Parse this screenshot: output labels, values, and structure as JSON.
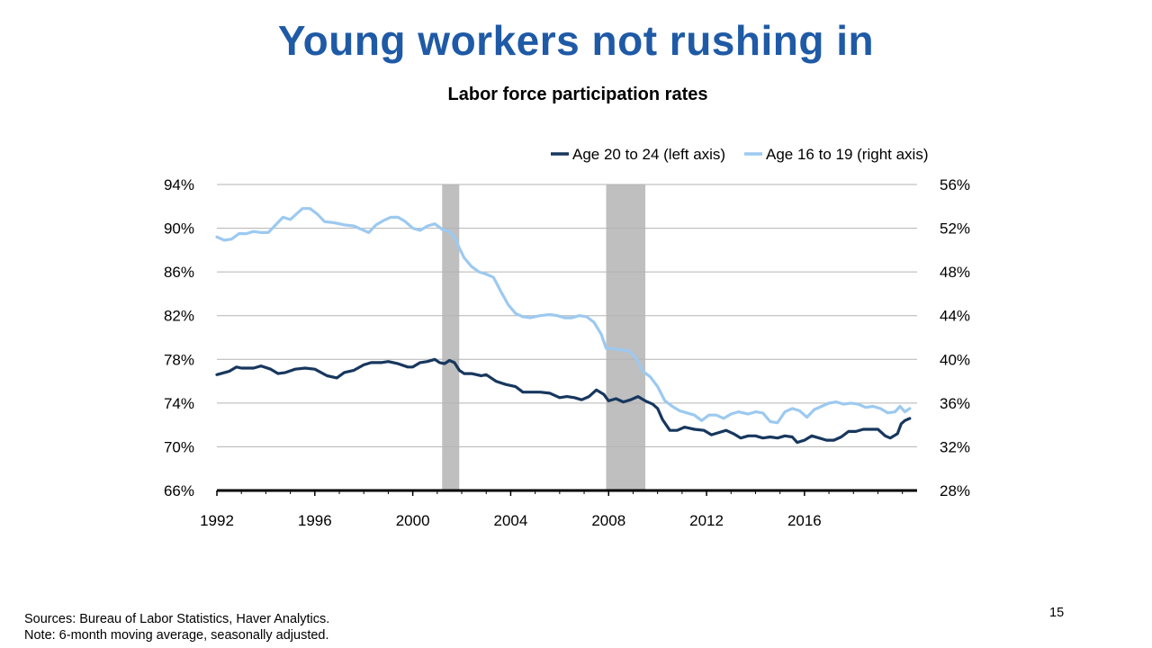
{
  "slide": {
    "title": "Young workers not rushing in",
    "page_number": "15",
    "sources": "Sources: Bureau of Labor Statistics, Haver Analytics.",
    "note": "Note: 6-month moving average, seasonally adjusted."
  },
  "chart_data": {
    "type": "line",
    "title": "Labor force participation rates",
    "x_range": [
      1992,
      2019.9
    ],
    "x_ticks": [
      1992,
      1996,
      2000,
      2004,
      2008,
      2012,
      2016
    ],
    "x_tick_labels": [
      "1992",
      "1996",
      "2000",
      "2004",
      "2008",
      "2012",
      "2016"
    ],
    "left_axis": {
      "range": [
        66,
        94
      ],
      "ticks": [
        66,
        70,
        74,
        78,
        82,
        86,
        90,
        94
      ],
      "tick_labels": [
        "66%",
        "70%",
        "74%",
        "78%",
        "82%",
        "86%",
        "90%",
        "94%"
      ]
    },
    "right_axis": {
      "range": [
        28,
        56
      ],
      "ticks": [
        28,
        32,
        36,
        40,
        44,
        48,
        52,
        56
      ],
      "tick_labels": [
        "28%",
        "32%",
        "36%",
        "40%",
        "44%",
        "48%",
        "52%",
        "56%"
      ]
    },
    "grid": true,
    "legend_position": "top-right",
    "recessions": [
      {
        "start": 2001.2,
        "end": 2001.9
      },
      {
        "start": 2007.9,
        "end": 2009.5
      }
    ],
    "colors": {
      "series_20_24": "#17375e",
      "series_16_19": "#9cc9f0",
      "recession": "#bfbfbf",
      "grid": "#b3b3b3",
      "axis": "#000000"
    },
    "series": [
      {
        "name": "Age 20 to 24 (left axis)",
        "axis": "left",
        "points": [
          [
            1992.0,
            76.6
          ],
          [
            1992.5,
            76.9
          ],
          [
            1992.8,
            77.3
          ],
          [
            1993.0,
            77.2
          ],
          [
            1993.5,
            77.2
          ],
          [
            1993.8,
            77.4
          ],
          [
            1994.2,
            77.1
          ],
          [
            1994.5,
            76.7
          ],
          [
            1994.8,
            76.8
          ],
          [
            1995.2,
            77.1
          ],
          [
            1995.6,
            77.2
          ],
          [
            1996.0,
            77.1
          ],
          [
            1996.5,
            76.5
          ],
          [
            1996.9,
            76.3
          ],
          [
            1997.2,
            76.8
          ],
          [
            1997.6,
            77.0
          ],
          [
            1998.0,
            77.5
          ],
          [
            1998.3,
            77.7
          ],
          [
            1998.7,
            77.7
          ],
          [
            1999.0,
            77.8
          ],
          [
            1999.4,
            77.6
          ],
          [
            1999.8,
            77.3
          ],
          [
            2000.0,
            77.3
          ],
          [
            2000.3,
            77.7
          ],
          [
            2000.6,
            77.8
          ],
          [
            2000.9,
            78.0
          ],
          [
            2001.1,
            77.7
          ],
          [
            2001.3,
            77.6
          ],
          [
            2001.5,
            77.9
          ],
          [
            2001.7,
            77.7
          ],
          [
            2001.9,
            77.0
          ],
          [
            2002.1,
            76.7
          ],
          [
            2002.4,
            76.7
          ],
          [
            2002.8,
            76.5
          ],
          [
            2003.0,
            76.6
          ],
          [
            2003.4,
            76.0
          ],
          [
            2003.8,
            75.7
          ],
          [
            2004.2,
            75.5
          ],
          [
            2004.5,
            75.0
          ],
          [
            2004.8,
            75.0
          ],
          [
            2005.2,
            75.0
          ],
          [
            2005.6,
            74.9
          ],
          [
            2006.0,
            74.5
          ],
          [
            2006.3,
            74.6
          ],
          [
            2006.6,
            74.5
          ],
          [
            2006.9,
            74.3
          ],
          [
            2007.2,
            74.6
          ],
          [
            2007.5,
            75.2
          ],
          [
            2007.8,
            74.8
          ],
          [
            2008.0,
            74.2
          ],
          [
            2008.3,
            74.4
          ],
          [
            2008.6,
            74.1
          ],
          [
            2008.9,
            74.3
          ],
          [
            2009.2,
            74.6
          ],
          [
            2009.5,
            74.2
          ],
          [
            2009.8,
            73.9
          ],
          [
            2010.0,
            73.5
          ],
          [
            2010.2,
            72.5
          ],
          [
            2010.5,
            71.5
          ],
          [
            2010.8,
            71.5
          ],
          [
            2011.1,
            71.8
          ],
          [
            2011.5,
            71.6
          ],
          [
            2011.9,
            71.5
          ],
          [
            2012.2,
            71.1
          ],
          [
            2012.5,
            71.3
          ],
          [
            2012.8,
            71.5
          ],
          [
            2013.1,
            71.2
          ],
          [
            2013.4,
            70.8
          ],
          [
            2013.7,
            71.0
          ],
          [
            2014.0,
            71.0
          ],
          [
            2014.3,
            70.8
          ],
          [
            2014.6,
            70.9
          ],
          [
            2014.9,
            70.8
          ],
          [
            2015.2,
            71.0
          ],
          [
            2015.5,
            70.9
          ],
          [
            2015.7,
            70.4
          ],
          [
            2016.0,
            70.6
          ],
          [
            2016.3,
            71.0
          ],
          [
            2016.6,
            70.8
          ],
          [
            2016.9,
            70.6
          ],
          [
            2017.2,
            70.6
          ],
          [
            2017.5,
            70.9
          ],
          [
            2017.8,
            71.4
          ],
          [
            2018.1,
            71.4
          ],
          [
            2018.4,
            71.6
          ],
          [
            2018.7,
            71.6
          ],
          [
            2019.0,
            71.6
          ],
          [
            2019.3,
            71.0
          ],
          [
            2019.5,
            70.8
          ],
          [
            2019.8,
            71.2
          ],
          [
            2019.95,
            72.1
          ],
          [
            2020.1,
            72.4
          ],
          [
            2020.3,
            72.6
          ]
        ]
      },
      {
        "name": "Age 16 to 19 (right axis)",
        "axis": "right",
        "points": [
          [
            1992.0,
            51.2
          ],
          [
            1992.3,
            50.9
          ],
          [
            1992.6,
            51.0
          ],
          [
            1992.9,
            51.5
          ],
          [
            1993.2,
            51.5
          ],
          [
            1993.5,
            51.7
          ],
          [
            1993.8,
            51.6
          ],
          [
            1994.1,
            51.6
          ],
          [
            1994.4,
            52.3
          ],
          [
            1994.7,
            53.0
          ],
          [
            1995.0,
            52.8
          ],
          [
            1995.2,
            53.2
          ],
          [
            1995.5,
            53.8
          ],
          [
            1995.8,
            53.8
          ],
          [
            1996.1,
            53.3
          ],
          [
            1996.4,
            52.6
          ],
          [
            1996.8,
            52.5
          ],
          [
            1997.2,
            52.3
          ],
          [
            1997.6,
            52.2
          ],
          [
            1997.9,
            51.9
          ],
          [
            1998.2,
            51.6
          ],
          [
            1998.5,
            52.3
          ],
          [
            1998.8,
            52.7
          ],
          [
            1999.1,
            53.0
          ],
          [
            1999.4,
            53.0
          ],
          [
            1999.7,
            52.6
          ],
          [
            2000.0,
            52.0
          ],
          [
            2000.3,
            51.8
          ],
          [
            2000.6,
            52.2
          ],
          [
            2000.9,
            52.4
          ],
          [
            2001.2,
            51.9
          ],
          [
            2001.5,
            51.7
          ],
          [
            2001.7,
            51.2
          ],
          [
            2001.9,
            50.2
          ],
          [
            2002.1,
            49.3
          ],
          [
            2002.4,
            48.5
          ],
          [
            2002.7,
            48.0
          ],
          [
            2003.0,
            47.8
          ],
          [
            2003.3,
            47.5
          ],
          [
            2003.6,
            46.2
          ],
          [
            2003.9,
            45.0
          ],
          [
            2004.2,
            44.2
          ],
          [
            2004.5,
            43.9
          ],
          [
            2004.8,
            43.8
          ],
          [
            2005.2,
            44.0
          ],
          [
            2005.6,
            44.1
          ],
          [
            2005.9,
            44.0
          ],
          [
            2006.2,
            43.8
          ],
          [
            2006.5,
            43.8
          ],
          [
            2006.8,
            44.0
          ],
          [
            2007.1,
            43.9
          ],
          [
            2007.4,
            43.4
          ],
          [
            2007.7,
            42.3
          ],
          [
            2007.9,
            41.0
          ],
          [
            2008.1,
            41.0
          ],
          [
            2008.4,
            40.9
          ],
          [
            2008.8,
            40.8
          ],
          [
            2009.1,
            40.2
          ],
          [
            2009.4,
            38.9
          ],
          [
            2009.7,
            38.4
          ],
          [
            2010.0,
            37.5
          ],
          [
            2010.3,
            36.2
          ],
          [
            2010.6,
            35.7
          ],
          [
            2010.9,
            35.3
          ],
          [
            2011.2,
            35.1
          ],
          [
            2011.5,
            34.9
          ],
          [
            2011.8,
            34.4
          ],
          [
            2012.1,
            34.9
          ],
          [
            2012.4,
            34.9
          ],
          [
            2012.7,
            34.6
          ],
          [
            2013.0,
            35.0
          ],
          [
            2013.3,
            35.2
          ],
          [
            2013.7,
            35.0
          ],
          [
            2014.0,
            35.2
          ],
          [
            2014.3,
            35.1
          ],
          [
            2014.6,
            34.3
          ],
          [
            2014.9,
            34.2
          ],
          [
            2015.2,
            35.2
          ],
          [
            2015.5,
            35.5
          ],
          [
            2015.8,
            35.3
          ],
          [
            2016.1,
            34.7
          ],
          [
            2016.4,
            35.4
          ],
          [
            2016.7,
            35.7
          ],
          [
            2017.0,
            36.0
          ],
          [
            2017.3,
            36.1
          ],
          [
            2017.6,
            35.9
          ],
          [
            2017.9,
            36.0
          ],
          [
            2018.2,
            35.9
          ],
          [
            2018.5,
            35.6
          ],
          [
            2018.8,
            35.7
          ],
          [
            2019.1,
            35.5
          ],
          [
            2019.4,
            35.1
          ],
          [
            2019.7,
            35.2
          ],
          [
            2019.9,
            35.7
          ],
          [
            2020.1,
            35.2
          ],
          [
            2020.3,
            35.5
          ]
        ]
      }
    ]
  }
}
